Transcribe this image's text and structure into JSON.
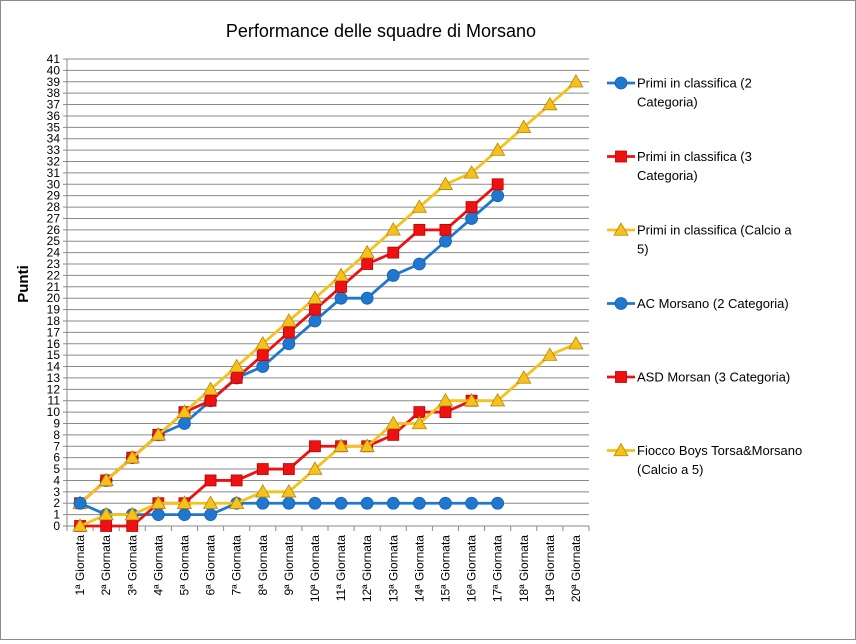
{
  "chart_data": {
    "type": "line",
    "title": "Performance delle squadre di Morsano",
    "ylabel": "Punti",
    "xlabel": "",
    "ylim": [
      0,
      41
    ],
    "grid": true,
    "legend_position": "right",
    "categories": [
      "1ª Giornata",
      "2ª Giornata",
      "3ª Giornata",
      "4ª Giornata",
      "5ª Giornata",
      "6ª Giornata",
      "7ª Giornata",
      "8ª Giornata",
      "9ª Giornata",
      "10ª Giornata",
      "11ª Giornata",
      "12ª Giornata",
      "13ª Giornata",
      "14ª Giornata",
      "15ª Giornata",
      "16ª Giornata",
      "17ª Giornata",
      "18ª Giornata",
      "19ª Giornata",
      "20ª Giornata"
    ],
    "series": [
      {
        "name": "Primi in classifica (2 Categoria)",
        "color": "#1f77d0",
        "marker": "circle",
        "values": [
          2,
          4,
          6,
          8,
          9,
          11,
          13,
          14,
          16,
          18,
          20,
          20,
          22,
          23,
          25,
          27,
          29,
          null,
          null,
          null
        ]
      },
      {
        "name": "Primi in classifica (3 Categoria)",
        "color": "#ee1111",
        "marker": "square",
        "values": [
          2,
          4,
          6,
          8,
          10,
          11,
          13,
          15,
          17,
          19,
          21,
          23,
          24,
          26,
          26,
          28,
          30,
          null,
          null,
          null
        ]
      },
      {
        "name": "Primi in classifica (Calcio a 5)",
        "color": "#f6c11a",
        "marker": "triangle",
        "values": [
          2,
          4,
          6,
          8,
          10,
          12,
          14,
          16,
          18,
          20,
          22,
          24,
          26,
          28,
          30,
          31,
          33,
          35,
          37,
          39
        ]
      },
      {
        "name": "AC Morsano (2 Categoria)",
        "color": "#1f77d0",
        "marker": "circle",
        "values": [
          2,
          1,
          1,
          1,
          1,
          1,
          2,
          2,
          2,
          2,
          2,
          2,
          2,
          2,
          2,
          2,
          2,
          null,
          null,
          null
        ]
      },
      {
        "name": "ASD Morsan (3 Categoria)",
        "color": "#ee1111",
        "marker": "square",
        "values": [
          0,
          0,
          0,
          2,
          2,
          4,
          4,
          5,
          5,
          7,
          7,
          7,
          8,
          10,
          10,
          11,
          null,
          null,
          null,
          null
        ]
      },
      {
        "name": "Fiocco Boys Torsa&Morsano (Calcio a 5)",
        "color": "#f6c11a",
        "marker": "triangle",
        "values": [
          0,
          1,
          1,
          2,
          2,
          2,
          2,
          3,
          3,
          5,
          7,
          7,
          9,
          9,
          11,
          11,
          11,
          13,
          15,
          16
        ]
      }
    ]
  }
}
